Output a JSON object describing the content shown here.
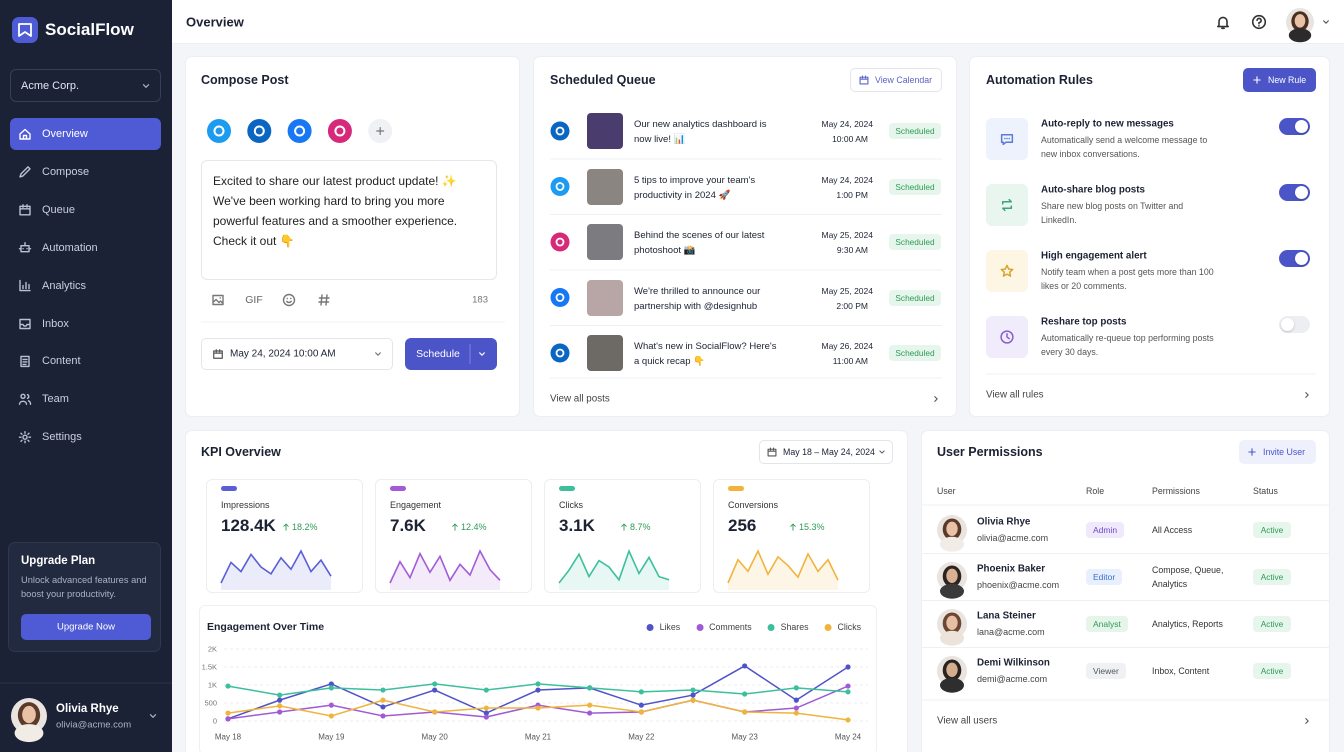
{
  "brand": "SocialFlow",
  "workspace": "Acme Corp.",
  "nav": [
    {
      "label": "Overview",
      "active": true
    },
    {
      "label": "Compose",
      "active": false
    },
    {
      "label": "Queue",
      "active": false
    },
    {
      "label": "Automation",
      "active": false
    },
    {
      "label": "Analytics",
      "active": false
    },
    {
      "label": "Inbox",
      "active": false
    },
    {
      "label": "Content",
      "active": false
    },
    {
      "label": "Team",
      "active": false
    },
    {
      "label": "Settings",
      "active": false
    }
  ],
  "upgrade": {
    "title": "Upgrade Plan",
    "text": "Unlock advanced features and boost your productivity.",
    "button": "Upgrade Now"
  },
  "current_user": {
    "name": "Olivia Rhye",
    "email": "olivia@acme.com"
  },
  "header": {
    "title": "Overview"
  },
  "compose": {
    "title": "Compose Post",
    "body": "Excited to share our latest product update! ✨ We've been working hard to bring you more powerful features and a smoother experience. Check it out 👇",
    "gif": "GIF",
    "char_count": 183,
    "schedule_at": "May 24, 2024 10:00 AM",
    "button": "Schedule"
  },
  "queue": {
    "title": "Scheduled Queue",
    "action": "View Calendar",
    "items": [
      {
        "text": "Our new analytics dashboard is now live! 📊",
        "date": "May 24, 2024",
        "time": "10:00 AM",
        "status": "Scheduled"
      },
      {
        "text": "5 tips to improve your team's productivity in 2024 🚀",
        "date": "May 24, 2024",
        "time": "1:00 PM",
        "status": "Scheduled"
      },
      {
        "text": "Behind the scenes of our latest photoshoot 📸",
        "date": "May 25, 2024",
        "time": "9:30 AM",
        "status": "Scheduled"
      },
      {
        "text": "We're thrilled to announce our partnership with @designhub",
        "date": "May 25, 2024",
        "time": "2:00 PM",
        "status": "Scheduled"
      },
      {
        "text": "What's new in SocialFlow? Here's a quick recap 👇",
        "date": "May 26, 2024",
        "time": "11:00 AM",
        "status": "Scheduled"
      }
    ],
    "footer": "View all posts"
  },
  "automation": {
    "title": "Automation Rules",
    "button": "New Rule",
    "rules": [
      {
        "title": "Auto-reply to new messages",
        "description": "Automatically send a welcome message to new inbox conversations.",
        "enabled": true
      },
      {
        "title": "Auto-share blog posts",
        "description": "Share new blog posts on Twitter and LinkedIn.",
        "enabled": true
      },
      {
        "title": "High engagement alert",
        "description": "Notify team when a post gets more than 100 likes or 20 comments.",
        "enabled": true
      },
      {
        "title": "Reshare top posts",
        "description": "Automatically re-queue top performing posts every 30 days.",
        "enabled": false
      }
    ],
    "footer": "View all rules"
  },
  "kpi": {
    "title": "KPI Overview",
    "range": "May 18 – May 24, 2024",
    "cards": [
      {
        "label": "Impressions",
        "value": "128.4K",
        "change": "18.2%",
        "color": "#5b5fd6",
        "trend": [
          30,
          48,
          40,
          55,
          44,
          38,
          52,
          42,
          58,
          40,
          50,
          36
        ]
      },
      {
        "label": "Engagement",
        "value": "7.6K",
        "change": "12.4%",
        "color": "#a35bd8",
        "trend": [
          34,
          50,
          38,
          56,
          42,
          54,
          36,
          48,
          40,
          58,
          44,
          36
        ]
      },
      {
        "label": "Clicks",
        "value": "3.1K",
        "change": "8.7%",
        "color": "#3cc09c",
        "trend": [
          36,
          44,
          54,
          40,
          50,
          46,
          38,
          56,
          42,
          52,
          40,
          38
        ]
      },
      {
        "label": "Conversions",
        "value": "256",
        "change": "15.3%",
        "color": "#f2b33d",
        "trend": [
          32,
          48,
          40,
          54,
          38,
          50,
          44,
          36,
          52,
          40,
          48,
          34
        ]
      }
    ]
  },
  "engagement_chart": {
    "type": "line",
    "title": "Engagement Over Time",
    "categories": [
      "May 18",
      null,
      "May 19",
      null,
      "May 20",
      null,
      "May 21",
      null,
      "May 22",
      null,
      "May 23",
      null,
      "May 24"
    ],
    "series": [
      {
        "name": "Likes",
        "color": "#4f53c8",
        "values": [
          60,
          580,
          1030,
          390,
          860,
          220,
          860,
          920,
          440,
          720,
          1530,
          580,
          1500
        ]
      },
      {
        "name": "Comments",
        "color": "#a05ad6",
        "values": [
          60,
          250,
          440,
          140,
          250,
          110,
          440,
          220,
          250,
          580,
          250,
          360,
          970
        ]
      },
      {
        "name": "Shares",
        "color": "#3cbf9c",
        "values": [
          970,
          720,
          920,
          860,
          1030,
          860,
          1030,
          920,
          810,
          860,
          750,
          920,
          810
        ]
      },
      {
        "name": "Clicks",
        "color": "#f0b43c",
        "values": [
          220,
          420,
          140,
          580,
          250,
          360,
          360,
          440,
          250,
          580,
          250,
          220,
          30
        ]
      }
    ],
    "ylim": [
      0,
      2000
    ],
    "yticks": [
      0,
      500,
      {
        "value": 1000,
        "label": "1K"
      },
      {
        "value": 1500,
        "label": "1.5K"
      },
      {
        "value": 2000,
        "label": "2K"
      }
    ],
    "grid": true,
    "legend": "top-right"
  },
  "users": {
    "title": "User Permissions",
    "action": "Invite User",
    "columns": [
      "User",
      "Role",
      "Permissions",
      "Status"
    ],
    "rows": [
      {
        "name": "Olivia Rhye",
        "email": "olivia@acme.com",
        "role": "Admin",
        "permissions": "All Access",
        "status": "Active"
      },
      {
        "name": "Phoenix Baker",
        "email": "phoenix@acme.com",
        "role": "Editor",
        "permissions": "Compose, Queue, Analytics",
        "status": "Active"
      },
      {
        "name": "Lana Steiner",
        "email": "lana@acme.com",
        "role": "Analyst",
        "permissions": "Analytics, Reports",
        "status": "Active"
      },
      {
        "name": "Demi Wilkinson",
        "email": "demi@acme.com",
        "role": "Viewer",
        "permissions": "Inbox, Content",
        "status": "Active"
      }
    ],
    "footer": "View all users"
  }
}
